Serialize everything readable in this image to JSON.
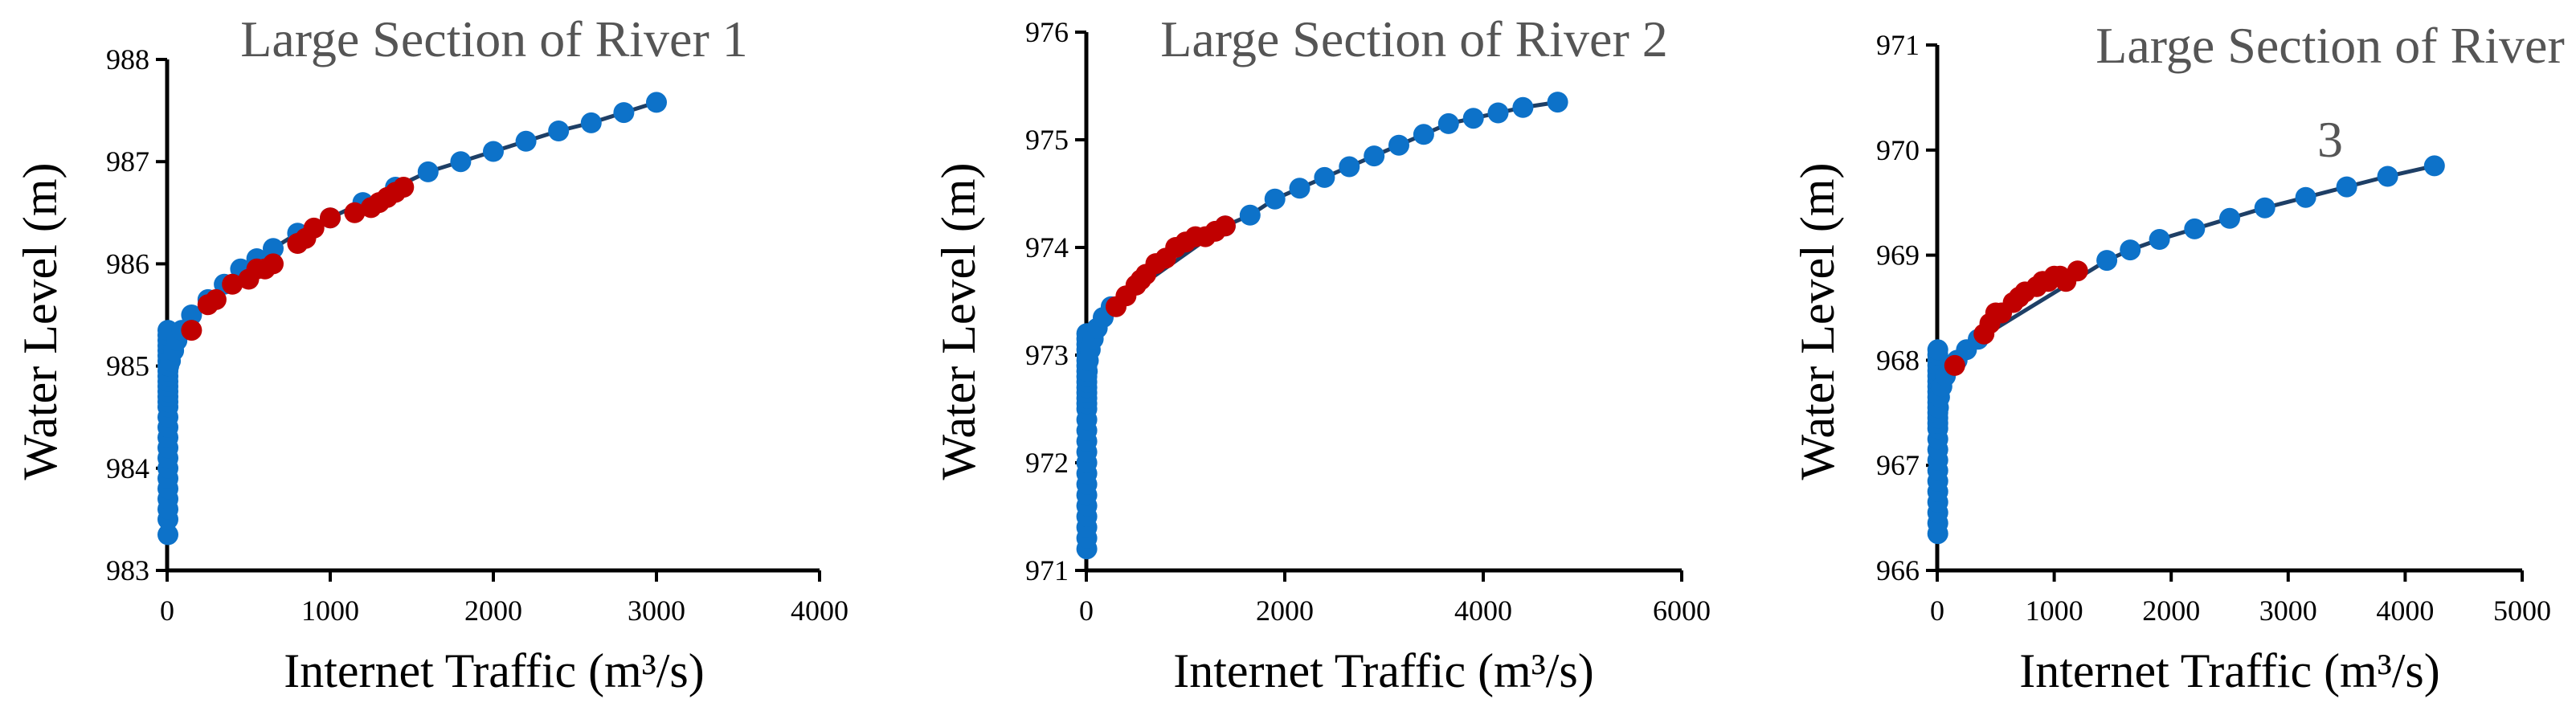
{
  "chart_data": [
    {
      "type": "scatter",
      "title": "Large Section of River 1",
      "xlabel": "Internet Traffic (m³/s)",
      "ylabel": "Water Level (m)",
      "xlim": [
        0,
        4000
      ],
      "ylim": [
        983,
        988
      ],
      "xticks": [
        "0",
        "1000",
        "2000",
        "3000",
        "4000"
      ],
      "yticks": [
        "983",
        "984",
        "985",
        "986",
        "987",
        "988"
      ],
      "grid": false,
      "colors": {
        "curve": "#1e3f66",
        "fitted": "#0d72c9",
        "measured": "#c00000"
      },
      "series": [
        {
          "x": [
            5,
            5,
            5,
            5,
            5,
            5,
            5,
            5,
            5,
            5,
            5,
            5,
            5,
            5,
            5,
            5,
            5,
            5,
            5,
            5,
            5,
            5,
            5,
            5,
            5,
            5,
            5,
            5,
            10,
            20,
            40,
            60,
            90,
            150,
            250,
            350,
            450,
            550,
            650,
            800,
            1000,
            1200,
            1400,
            1600,
            1800,
            2000,
            2200,
            2400,
            2600,
            2800,
            3000
          ],
          "y": [
            983.35,
            983.5,
            983.6,
            983.7,
            983.8,
            983.9,
            984.0,
            984.1,
            984.2,
            984.3,
            984.4,
            984.5,
            984.6,
            984.65,
            984.7,
            984.75,
            984.8,
            984.85,
            984.9,
            984.95,
            985.0,
            985.05,
            985.1,
            985.15,
            985.2,
            985.25,
            985.3,
            985.35,
            985.0,
            985.05,
            985.15,
            985.25,
            985.35,
            985.5,
            985.65,
            985.8,
            985.95,
            986.05,
            986.15,
            986.3,
            986.45,
            986.6,
            986.75,
            986.9,
            987.0,
            987.1,
            987.2,
            987.3,
            987.38,
            987.48,
            987.58
          ]
        },
        {
          "x": [
            150,
            250,
            300,
            400,
            500,
            550,
            600,
            650,
            800,
            850,
            900,
            1000,
            1150,
            1250,
            1300,
            1350,
            1400,
            1450
          ],
          "y": [
            985.35,
            985.6,
            985.65,
            985.8,
            985.85,
            985.95,
            985.95,
            986.0,
            986.2,
            986.25,
            986.35,
            986.45,
            986.5,
            986.55,
            986.6,
            986.65,
            986.7,
            986.75
          ]
        }
      ]
    },
    {
      "type": "scatter",
      "title": "Large Section of River 2",
      "xlabel": "Internet Traffic (m³/s)",
      "ylabel": "Water Level (m)",
      "xlim": [
        0,
        6000
      ],
      "ylim": [
        971,
        976
      ],
      "xticks": [
        "0",
        "2000",
        "4000",
        "6000"
      ],
      "yticks": [
        "971",
        "972",
        "973",
        "974",
        "975",
        "976"
      ],
      "grid": false,
      "colors": {
        "curve": "#1e3f66",
        "fitted": "#0d72c9",
        "measured": "#c00000"
      },
      "series": [
        {
          "x": [
            5,
            5,
            5,
            5,
            5,
            5,
            5,
            5,
            5,
            5,
            5,
            5,
            5,
            5,
            5,
            5,
            5,
            5,
            5,
            5,
            5,
            5,
            5,
            5,
            5,
            5,
            5,
            5,
            10,
            20,
            40,
            70,
            110,
            170,
            250,
            1400,
            1650,
            1900,
            2150,
            2400,
            2650,
            2900,
            3150,
            3400,
            3650,
            3900,
            4150,
            4400,
            4750
          ],
          "y": [
            971.2,
            971.3,
            971.4,
            971.5,
            971.6,
            971.7,
            971.8,
            971.9,
            972.0,
            972.1,
            972.2,
            972.3,
            972.4,
            972.5,
            972.55,
            972.6,
            972.65,
            972.7,
            972.75,
            972.8,
            972.85,
            972.9,
            972.95,
            973.0,
            973.05,
            973.1,
            973.15,
            973.2,
            972.85,
            972.95,
            973.05,
            973.15,
            973.25,
            973.35,
            973.45,
            974.2,
            974.3,
            974.45,
            974.55,
            974.65,
            974.75,
            974.85,
            974.95,
            975.05,
            975.15,
            975.2,
            975.25,
            975.3,
            975.35
          ]
        },
        {
          "x": [
            300,
            400,
            500,
            550,
            600,
            700,
            800,
            900,
            1000,
            1100,
            1200,
            1300,
            1400
          ],
          "y": [
            973.45,
            973.55,
            973.65,
            973.7,
            973.75,
            973.85,
            973.9,
            974.0,
            974.05,
            974.1,
            974.1,
            974.15,
            974.2
          ]
        }
      ]
    },
    {
      "type": "scatter",
      "title": "Large Section of River 3",
      "xlabel": "Internet Traffic (m³/s)",
      "ylabel": "Water Level (m)",
      "xlim": [
        0,
        5000
      ],
      "ylim": [
        966,
        971
      ],
      "xticks": [
        "0",
        "1000",
        "2000",
        "3000",
        "4000",
        "5000"
      ],
      "yticks": [
        "966",
        "967",
        "968",
        "969",
        "970",
        "971"
      ],
      "grid": false,
      "colors": {
        "curve": "#1e3f66",
        "fitted": "#0d72c9",
        "measured": "#c00000"
      },
      "series": [
        {
          "x": [
            5,
            5,
            5,
            5,
            5,
            5,
            5,
            5,
            5,
            5,
            5,
            5,
            5,
            5,
            5,
            5,
            5,
            5,
            5,
            5,
            5,
            5,
            5,
            5,
            5,
            5,
            10,
            20,
            40,
            70,
            110,
            170,
            250,
            350,
            1450,
            1650,
            1900,
            2200,
            2500,
            2800,
            3150,
            3500,
            3850,
            4250
          ],
          "y": [
            966.35,
            966.45,
            966.55,
            966.65,
            966.75,
            966.85,
            966.95,
            967.05,
            967.15,
            967.25,
            967.35,
            967.4,
            967.45,
            967.5,
            967.55,
            967.6,
            967.65,
            967.7,
            967.75,
            967.8,
            967.85,
            967.9,
            967.95,
            968.0,
            968.05,
            968.1,
            967.55,
            967.65,
            967.75,
            967.85,
            967.95,
            968.0,
            968.1,
            968.2,
            968.95,
            969.05,
            969.15,
            969.25,
            969.35,
            969.45,
            969.55,
            969.65,
            969.75,
            969.85
          ]
        },
        {
          "x": [
            150,
            400,
            450,
            500,
            550,
            650,
            700,
            750,
            850,
            900,
            950,
            1000,
            1050,
            1100,
            1200
          ],
          "y": [
            967.95,
            968.25,
            968.35,
            968.45,
            968.45,
            968.55,
            968.6,
            968.65,
            968.7,
            968.75,
            968.75,
            968.8,
            968.8,
            968.75,
            968.85
          ]
        }
      ]
    }
  ]
}
